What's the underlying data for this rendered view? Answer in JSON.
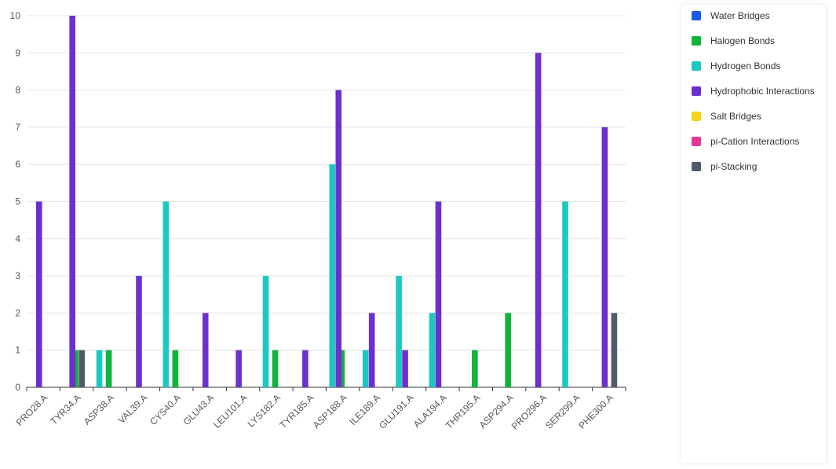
{
  "chart_data": {
    "type": "bar",
    "categories": [
      "PRO28.A",
      "TYR34.A",
      "ASP38.A",
      "VAL39.A",
      "CYS40.A",
      "GLU43.A",
      "LEU101.A",
      "LYS182.A",
      "TYR185.A",
      "ASP188.A",
      "ILE189.A",
      "GLU191.A",
      "ALA194.A",
      "THR195.A",
      "ASP294.A",
      "PRO296.A",
      "SER299.A",
      "PHE300.A"
    ],
    "series": [
      {
        "name": "Water Bridges",
        "color": "#1a5be6",
        "values": [
          0,
          0,
          0,
          0,
          0,
          0,
          0,
          0,
          0,
          0,
          0,
          0,
          0,
          0,
          0,
          0,
          0,
          0
        ]
      },
      {
        "name": "Halogen Bonds",
        "color": "#11b33a",
        "values": [
          0,
          1,
          1,
          0,
          1,
          0,
          0,
          1,
          0,
          1,
          0,
          0,
          0,
          1,
          2,
          0,
          0,
          0
        ]
      },
      {
        "name": "Hydrogen Bonds",
        "color": "#1cc8c2",
        "values": [
          0,
          0,
          1,
          0,
          5,
          0,
          0,
          3,
          0,
          6,
          1,
          3,
          2,
          0,
          0,
          0,
          5,
          0
        ]
      },
      {
        "name": "Hydrophobic Interactions",
        "color": "#6e2fcf",
        "values": [
          5,
          10,
          0,
          3,
          0,
          2,
          1,
          0,
          1,
          8,
          2,
          1,
          5,
          0,
          0,
          9,
          0,
          7
        ]
      },
      {
        "name": "Salt Bridges",
        "color": "#f5d419",
        "values": [
          0,
          0,
          0,
          0,
          0,
          0,
          0,
          0,
          0,
          0,
          0,
          0,
          0,
          0,
          0,
          0,
          0,
          0
        ]
      },
      {
        "name": "pi-Cation Interactions",
        "color": "#e8369a",
        "values": [
          0,
          0,
          0,
          0,
          0,
          0,
          0,
          0,
          0,
          0,
          0,
          0,
          0,
          0,
          0,
          0,
          0,
          0
        ]
      },
      {
        "name": "pi-Stacking",
        "color": "#4f5a6a",
        "values": [
          0,
          1,
          0,
          0,
          0,
          0,
          0,
          0,
          0,
          0,
          0,
          0,
          0,
          0,
          0,
          0,
          0,
          2
        ]
      }
    ],
    "yticks": [
      "0",
      "1",
      "2",
      "3",
      "4",
      "5",
      "6",
      "7",
      "8",
      "9",
      "10"
    ],
    "ylim": [
      0,
      10
    ],
    "grid": true,
    "legend_position": "right",
    "title": "",
    "xlabel": "",
    "ylabel": ""
  }
}
